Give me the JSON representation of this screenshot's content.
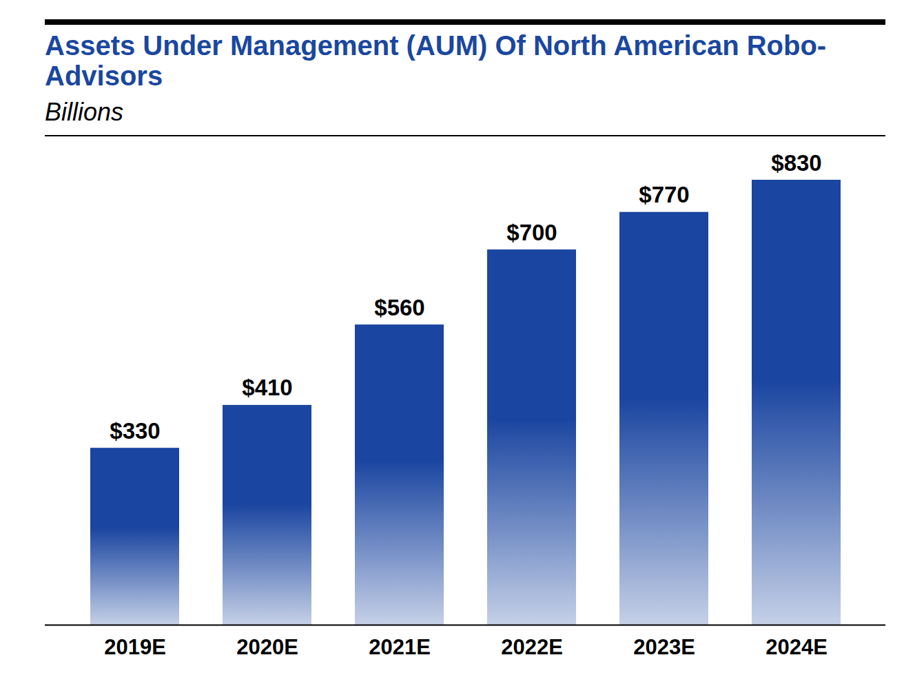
{
  "chart_data": {
    "type": "bar",
    "title": "Assets Under Management (AUM) Of North American Robo-Advisors",
    "subtitle": "Billions",
    "categories": [
      "2019E",
      "2020E",
      "2021E",
      "2022E",
      "2023E",
      "2024E"
    ],
    "values": [
      330,
      410,
      560,
      700,
      770,
      830
    ],
    "value_labels": [
      "$330",
      "$410",
      "$560",
      "$700",
      "$770",
      "$830"
    ],
    "data_labels": true,
    "color": "#1a45a0",
    "tick_labels": "x",
    "grid": false
  }
}
